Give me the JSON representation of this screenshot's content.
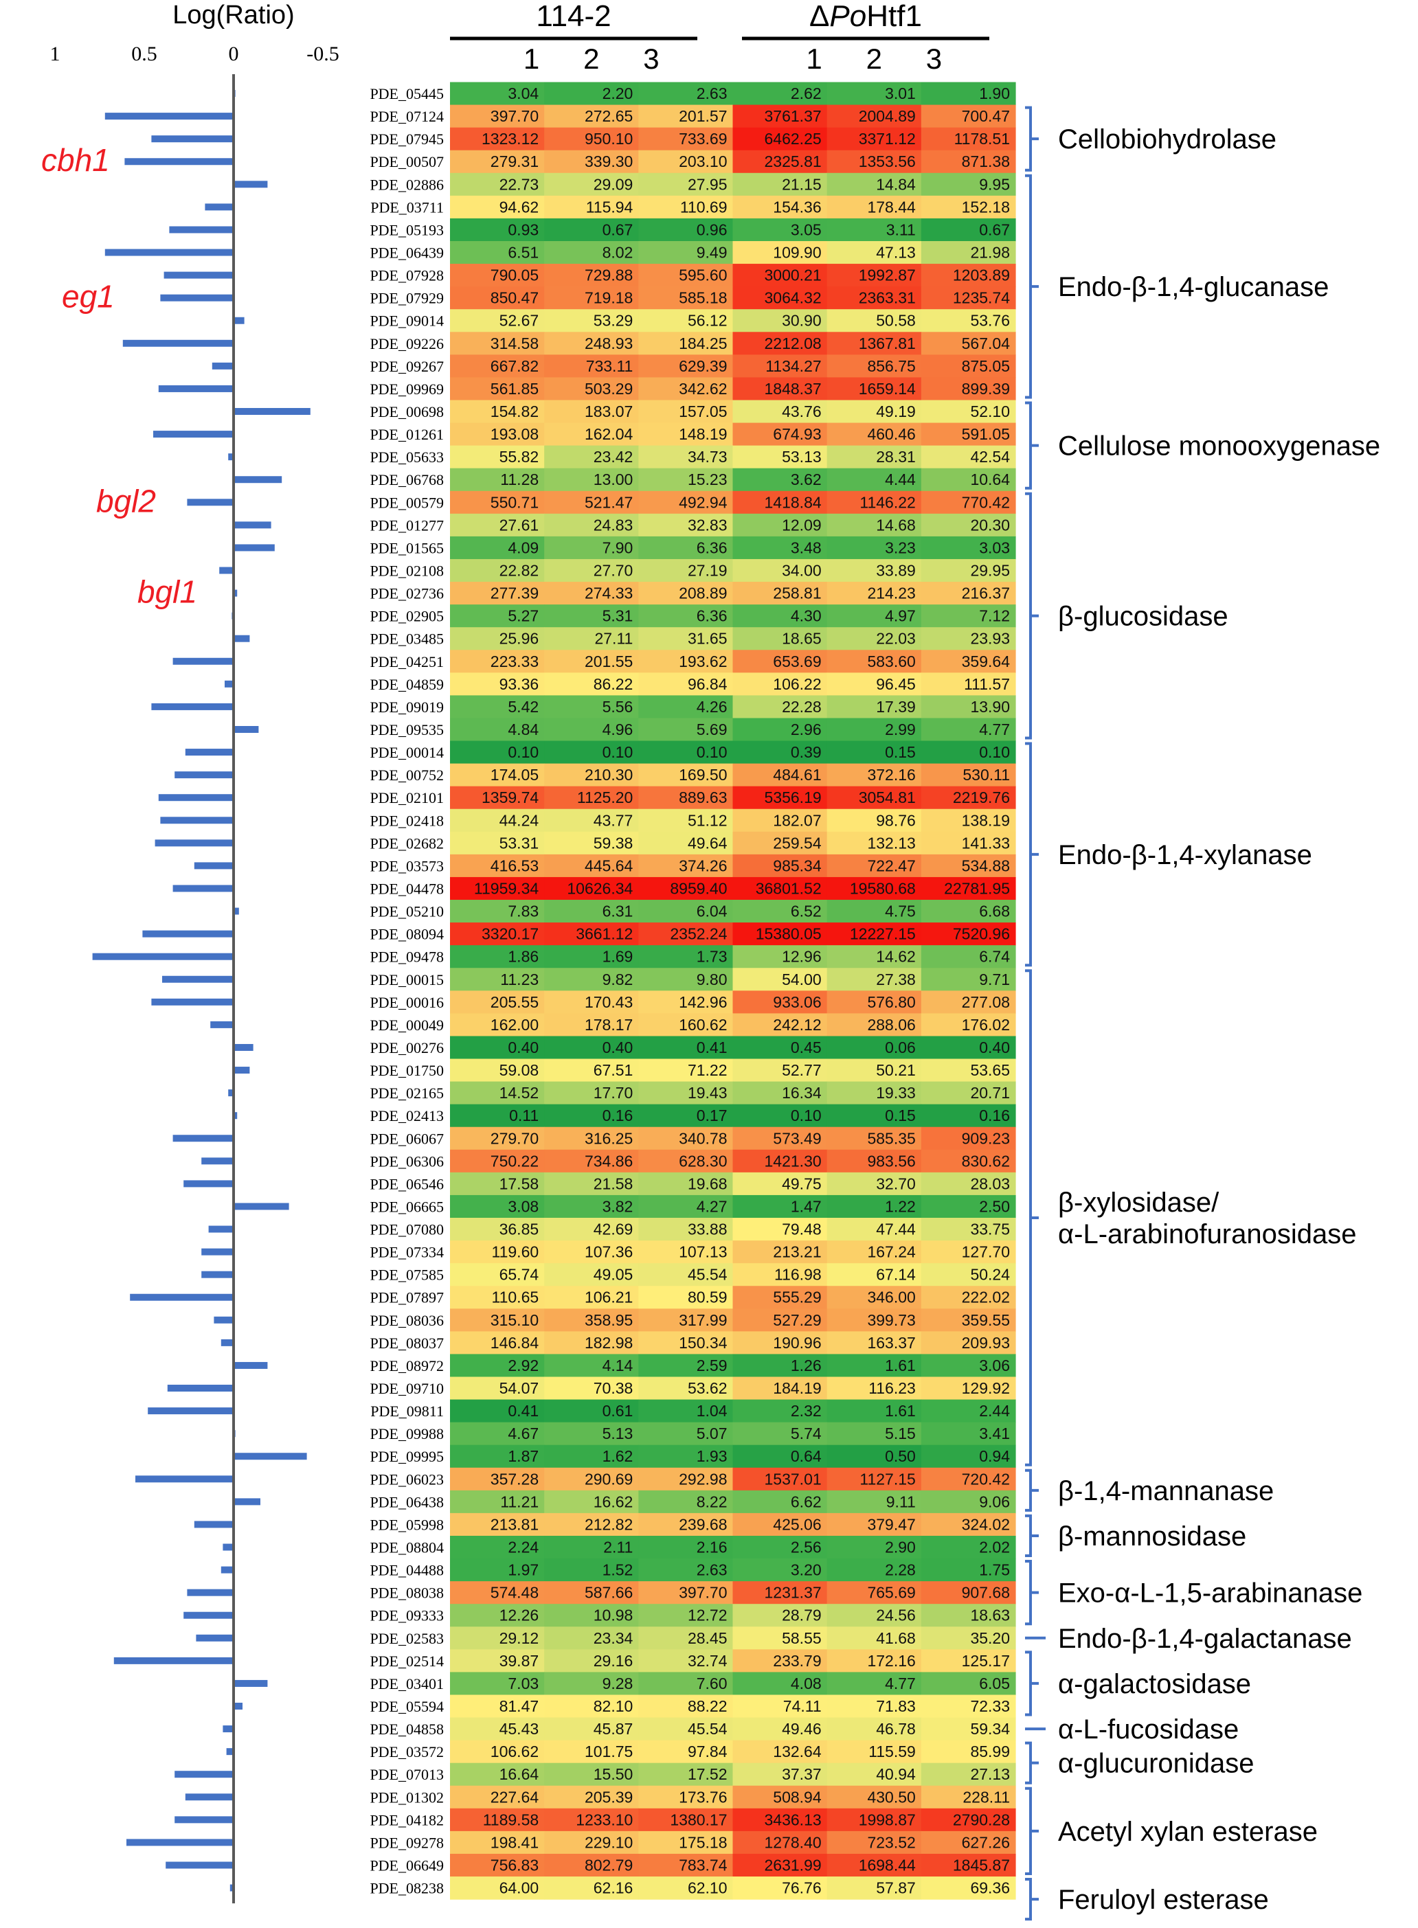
{
  "chart_data": {
    "type": "heatmap",
    "bar_axis": {
      "title": "Log(Ratio)",
      "ticks": [
        "1",
        "0.5",
        "0",
        "-0.5"
      ],
      "tick_values": [
        1,
        0.5,
        0,
        -0.5
      ],
      "range": [
        1.0,
        -0.6
      ]
    },
    "groups": [
      {
        "name": "114-2",
        "replicates": [
          "1",
          "2",
          "3"
        ]
      },
      {
        "name_prefix": "Δ",
        "name_italic": "Po",
        "name_suffix": "Htf1",
        "replicates": [
          "1",
          "2",
          "3"
        ]
      }
    ],
    "colors": {
      "low": "#23a045",
      "mid": "#fff07a",
      "high": "#f5150e",
      "bar": "#4472c4",
      "bracket": "#4472c4",
      "gene_label": "#ee1d24"
    },
    "color_scale": "log",
    "rows": [
      {
        "id": "PDE_05445",
        "v": [
          3.04,
          2.2,
          2.63,
          2.62,
          3.01,
          1.9
        ],
        "r": -0.01
      },
      {
        "id": "PDE_07124",
        "v": [
          397.7,
          272.65,
          201.57,
          3761.37,
          2004.89,
          700.47
        ],
        "r": 0.72
      },
      {
        "id": "PDE_07945",
        "v": [
          1323.12,
          950.1,
          733.69,
          6462.25,
          3371.12,
          1178.51
        ],
        "r": 0.46
      },
      {
        "id": "PDE_00507",
        "v": [
          279.31,
          339.3,
          203.1,
          2325.81,
          1353.56,
          871.38
        ],
        "r": 0.61
      },
      {
        "id": "PDE_02886",
        "v": [
          22.73,
          29.09,
          27.95,
          21.15,
          14.84,
          9.95
        ],
        "r": -0.19
      },
      {
        "id": "PDE_03711",
        "v": [
          94.62,
          115.94,
          110.69,
          154.36,
          178.44,
          152.18
        ],
        "r": 0.16
      },
      {
        "id": "PDE_05193",
        "v": [
          0.93,
          0.67,
          0.96,
          3.05,
          3.11,
          0.67
        ],
        "r": 0.36
      },
      {
        "id": "PDE_06439",
        "v": [
          6.51,
          8.02,
          9.49,
          109.9,
          47.13,
          21.98
        ],
        "r": 0.72
      },
      {
        "id": "PDE_07928",
        "v": [
          790.05,
          729.88,
          595.6,
          3000.21,
          1992.87,
          1203.89
        ],
        "r": 0.39
      },
      {
        "id": "PDE_07929",
        "v": [
          850.47,
          719.18,
          585.18,
          3064.32,
          2363.31,
          1235.74
        ],
        "r": 0.41
      },
      {
        "id": "PDE_09014",
        "v": [
          52.67,
          53.29,
          56.12,
          30.9,
          50.58,
          53.76
        ],
        "r": -0.06
      },
      {
        "id": "PDE_09226",
        "v": [
          314.58,
          248.93,
          184.25,
          2212.08,
          1367.81,
          567.04
        ],
        "r": 0.62
      },
      {
        "id": "PDE_09267",
        "v": [
          667.82,
          733.11,
          629.39,
          1134.27,
          856.75,
          875.05
        ],
        "r": 0.12
      },
      {
        "id": "PDE_09969",
        "v": [
          561.85,
          503.29,
          342.62,
          1848.37,
          1659.14,
          899.39
        ],
        "r": 0.42
      },
      {
        "id": "PDE_00698",
        "v": [
          154.82,
          183.07,
          157.05,
          43.76,
          49.19,
          52.1
        ],
        "r": -0.43
      },
      {
        "id": "PDE_01261",
        "v": [
          193.08,
          162.04,
          148.19,
          674.93,
          460.46,
          591.05
        ],
        "r": 0.45
      },
      {
        "id": "PDE_05633",
        "v": [
          55.82,
          23.42,
          34.73,
          53.13,
          28.31,
          42.54
        ],
        "r": 0.03
      },
      {
        "id": "PDE_06768",
        "v": [
          11.28,
          13.0,
          15.23,
          3.62,
          4.44,
          10.64
        ],
        "r": -0.27
      },
      {
        "id": "PDE_00579",
        "v": [
          550.71,
          521.47,
          492.94,
          1418.84,
          1146.22,
          770.42
        ],
        "r": 0.26
      },
      {
        "id": "PDE_01277",
        "v": [
          27.61,
          24.83,
          32.83,
          12.09,
          14.68,
          20.3
        ],
        "r": -0.21
      },
      {
        "id": "PDE_01565",
        "v": [
          4.09,
          7.9,
          6.36,
          3.48,
          3.23,
          3.03
        ],
        "r": -0.23
      },
      {
        "id": "PDE_02108",
        "v": [
          22.82,
          27.7,
          27.19,
          34.0,
          33.89,
          29.95
        ],
        "r": 0.08
      },
      {
        "id": "PDE_02736",
        "v": [
          277.39,
          274.33,
          208.89,
          258.81,
          214.23,
          216.37
        ],
        "r": -0.02
      },
      {
        "id": "PDE_02905",
        "v": [
          5.27,
          5.31,
          6.36,
          4.3,
          4.97,
          7.12
        ],
        "r": 0.01
      },
      {
        "id": "PDE_03485",
        "v": [
          25.96,
          27.11,
          31.65,
          18.65,
          22.03,
          23.93
        ],
        "r": -0.09
      },
      {
        "id": "PDE_04251",
        "v": [
          223.33,
          201.55,
          193.62,
          653.69,
          583.6,
          359.64
        ],
        "r": 0.34
      },
      {
        "id": "PDE_04859",
        "v": [
          93.36,
          86.22,
          96.84,
          106.22,
          96.45,
          111.57
        ],
        "r": 0.05
      },
      {
        "id": "PDE_09019",
        "v": [
          5.42,
          5.56,
          4.26,
          22.28,
          17.39,
          13.9
        ],
        "r": 0.46
      },
      {
        "id": "PDE_09535",
        "v": [
          4.84,
          4.96,
          5.69,
          2.96,
          2.99,
          4.77
        ],
        "r": -0.14
      },
      {
        "id": "PDE_00014",
        "v": [
          0.1,
          0.1,
          0.1,
          0.39,
          0.15,
          0.1
        ],
        "r": 0.27
      },
      {
        "id": "PDE_00752",
        "v": [
          174.05,
          210.3,
          169.5,
          484.61,
          372.16,
          530.11
        ],
        "r": 0.33
      },
      {
        "id": "PDE_02101",
        "v": [
          1359.74,
          1125.2,
          889.63,
          5356.19,
          3054.81,
          2219.76
        ],
        "r": 0.42
      },
      {
        "id": "PDE_02418",
        "v": [
          44.24,
          43.77,
          51.12,
          182.07,
          98.76,
          138.19
        ],
        "r": 0.41
      },
      {
        "id": "PDE_02682",
        "v": [
          53.31,
          59.38,
          49.64,
          259.54,
          132.13,
          141.33
        ],
        "r": 0.44
      },
      {
        "id": "PDE_03573",
        "v": [
          416.53,
          445.64,
          374.26,
          985.34,
          722.47,
          534.88
        ],
        "r": 0.22
      },
      {
        "id": "PDE_04478",
        "v": [
          11959.34,
          10626.34,
          8959.4,
          36801.52,
          19580.68,
          22781.95
        ],
        "r": 0.34
      },
      {
        "id": "PDE_05210",
        "v": [
          7.83,
          6.31,
          6.04,
          6.52,
          4.75,
          6.68
        ],
        "r": -0.03
      },
      {
        "id": "PDE_08094",
        "v": [
          3320.17,
          3661.12,
          2352.24,
          15380.05,
          12227.15,
          7520.96
        ],
        "r": 0.51
      },
      {
        "id": "PDE_09478",
        "v": [
          1.86,
          1.69,
          1.73,
          12.96,
          14.62,
          6.74
        ],
        "r": 0.79
      },
      {
        "id": "PDE_00015",
        "v": [
          11.23,
          9.82,
          9.8,
          54.0,
          27.38,
          9.71
        ],
        "r": 0.4
      },
      {
        "id": "PDE_00016",
        "v": [
          205.55,
          170.43,
          142.96,
          933.06,
          576.8,
          277.08
        ],
        "r": 0.46
      },
      {
        "id": "PDE_00049",
        "v": [
          162.0,
          178.17,
          160.62,
          242.12,
          288.06,
          176.02
        ],
        "r": 0.13
      },
      {
        "id": "PDE_00276",
        "v": [
          0.4,
          0.4,
          0.41,
          0.45,
          0.06,
          0.4
        ],
        "r": -0.11
      },
      {
        "id": "PDE_01750",
        "v": [
          59.08,
          67.51,
          71.22,
          52.77,
          50.21,
          53.65
        ],
        "r": -0.09
      },
      {
        "id": "PDE_02165",
        "v": [
          14.52,
          17.7,
          19.43,
          16.34,
          19.33,
          20.71
        ],
        "r": 0.03
      },
      {
        "id": "PDE_02413",
        "v": [
          0.11,
          0.16,
          0.17,
          0.1,
          0.15,
          0.16
        ],
        "r": -0.02
      },
      {
        "id": "PDE_06067",
        "v": [
          279.7,
          316.25,
          340.78,
          573.49,
          585.35,
          909.23
        ],
        "r": 0.34
      },
      {
        "id": "PDE_06306",
        "v": [
          750.22,
          734.86,
          628.3,
          1421.3,
          983.56,
          830.62
        ],
        "r": 0.18
      },
      {
        "id": "PDE_06546",
        "v": [
          17.58,
          21.58,
          19.68,
          49.75,
          32.7,
          28.03
        ],
        "r": 0.28
      },
      {
        "id": "PDE_06665",
        "v": [
          3.08,
          3.82,
          4.27,
          1.47,
          1.22,
          2.5
        ],
        "r": -0.31
      },
      {
        "id": "PDE_07080",
        "v": [
          36.85,
          42.69,
          33.88,
          79.48,
          47.44,
          33.75
        ],
        "r": 0.14
      },
      {
        "id": "PDE_07334",
        "v": [
          119.6,
          107.36,
          107.13,
          213.21,
          167.24,
          127.7
        ],
        "r": 0.18
      },
      {
        "id": "PDE_07585",
        "v": [
          65.74,
          49.05,
          45.54,
          116.98,
          67.14,
          50.24
        ],
        "r": 0.18
      },
      {
        "id": "PDE_07897",
        "v": [
          110.65,
          106.21,
          80.59,
          555.29,
          346.0,
          222.02
        ],
        "r": 0.58
      },
      {
        "id": "PDE_08036",
        "v": [
          315.1,
          358.95,
          317.99,
          527.29,
          399.73,
          359.55
        ],
        "r": 0.11
      },
      {
        "id": "PDE_08037",
        "v": [
          146.84,
          182.98,
          150.34,
          190.96,
          163.37,
          209.93
        ],
        "r": 0.07
      },
      {
        "id": "PDE_08972",
        "v": [
          2.92,
          4.14,
          2.59,
          1.26,
          1.61,
          3.06
        ],
        "r": -0.19
      },
      {
        "id": "PDE_09710",
        "v": [
          54.07,
          70.38,
          53.62,
          184.19,
          116.23,
          129.92
        ],
        "r": 0.37
      },
      {
        "id": "PDE_09811",
        "v": [
          0.41,
          0.61,
          1.04,
          2.32,
          1.61,
          2.44
        ],
        "r": 0.48
      },
      {
        "id": "PDE_09988",
        "v": [
          4.67,
          5.13,
          5.07,
          5.74,
          5.15,
          3.41
        ],
        "r": -0.01
      },
      {
        "id": "PDE_09995",
        "v": [
          1.87,
          1.62,
          1.93,
          0.64,
          0.5,
          0.94
        ],
        "r": -0.41
      },
      {
        "id": "PDE_06023",
        "v": [
          357.28,
          290.69,
          292.98,
          1537.01,
          1127.15,
          720.42
        ],
        "r": 0.55
      },
      {
        "id": "PDE_06438",
        "v": [
          11.21,
          16.62,
          8.22,
          6.62,
          9.11,
          9.06
        ],
        "r": -0.15
      },
      {
        "id": "PDE_05998",
        "v": [
          213.81,
          212.82,
          239.68,
          425.06,
          379.47,
          324.02
        ],
        "r": 0.22
      },
      {
        "id": "PDE_08804",
        "v": [
          2.24,
          2.11,
          2.16,
          2.56,
          2.9,
          2.02
        ],
        "r": 0.06
      },
      {
        "id": "PDE_04488",
        "v": [
          1.97,
          1.52,
          2.63,
          3.2,
          2.28,
          1.75
        ],
        "r": 0.07
      },
      {
        "id": "PDE_08038",
        "v": [
          574.48,
          587.66,
          397.7,
          1231.37,
          765.69,
          907.68
        ],
        "r": 0.26
      },
      {
        "id": "PDE_09333",
        "v": [
          12.26,
          10.98,
          12.72,
          28.79,
          24.56,
          18.63
        ],
        "r": 0.28
      },
      {
        "id": "PDE_02583",
        "v": [
          29.12,
          23.34,
          28.45,
          58.55,
          41.68,
          35.2
        ],
        "r": 0.21
      },
      {
        "id": "PDE_02514",
        "v": [
          39.87,
          29.16,
          32.74,
          233.79,
          172.16,
          125.17
        ],
        "r": 0.67
      },
      {
        "id": "PDE_03401",
        "v": [
          7.03,
          9.28,
          7.6,
          4.08,
          4.77,
          6.05
        ],
        "r": -0.19
      },
      {
        "id": "PDE_05594",
        "v": [
          81.47,
          82.1,
          88.22,
          74.11,
          71.83,
          72.33
        ],
        "r": -0.05
      },
      {
        "id": "PDE_04858",
        "v": [
          45.43,
          45.87,
          45.54,
          49.46,
          46.78,
          59.34
        ],
        "r": 0.06
      },
      {
        "id": "PDE_03572",
        "v": [
          106.62,
          101.75,
          97.84,
          132.64,
          115.59,
          85.99
        ],
        "r": 0.04
      },
      {
        "id": "PDE_07013",
        "v": [
          16.64,
          15.5,
          17.52,
          37.37,
          40.94,
          27.13
        ],
        "r": 0.33
      },
      {
        "id": "PDE_01302",
        "v": [
          227.64,
          205.39,
          173.76,
          508.94,
          430.5,
          228.11
        ],
        "r": 0.27
      },
      {
        "id": "PDE_04182",
        "v": [
          1189.58,
          1233.1,
          1380.17,
          3436.13,
          1998.87,
          2790.28
        ],
        "r": 0.33
      },
      {
        "id": "PDE_09278",
        "v": [
          198.41,
          229.1,
          175.18,
          1278.4,
          723.52,
          627.26
        ],
        "r": 0.6
      },
      {
        "id": "PDE_06649",
        "v": [
          756.83,
          802.79,
          783.74,
          2631.99,
          1698.44,
          1845.87
        ],
        "r": 0.38
      },
      {
        "id": "PDE_08238",
        "v": [
          64.0,
          62.16,
          62.1,
          76.76,
          57.87,
          69.36
        ],
        "r": 0.02
      }
    ],
    "categories": [
      {
        "label": [
          "Cellobiohydrolase"
        ],
        "start": 1,
        "end": 3
      },
      {
        "label": [
          "Endo-β-1,4-glucanase"
        ],
        "start": 4,
        "end": 13
      },
      {
        "label": [
          "Cellulose monooxygenase"
        ],
        "start": 14,
        "end": 17
      },
      {
        "label": [
          "β-glucosidase"
        ],
        "start": 18,
        "end": 28
      },
      {
        "label": [
          "Endo-β-1,4-xylanase"
        ],
        "start": 29,
        "end": 38
      },
      {
        "label": [
          "β-xylosidase/",
          "α-L-arabinofuranosidase"
        ],
        "start": 39,
        "end": 60
      },
      {
        "label": [
          "β-1,4-mannanase"
        ],
        "start": 61,
        "end": 62
      },
      {
        "label": [
          "β-mannosidase"
        ],
        "start": 63,
        "end": 64
      },
      {
        "label": [
          "Exo-α-L-1,5-arabinanase"
        ],
        "start": 65,
        "end": 67
      },
      {
        "label": [
          "Endo-β-1,4-galactanase"
        ],
        "start": 68,
        "end": 68
      },
      {
        "label": [
          "α-galactosidase"
        ],
        "start": 69,
        "end": 71
      },
      {
        "label": [
          "α-L-fucosidase"
        ],
        "start": 72,
        "end": 72
      },
      {
        "label": [
          "α-glucuronidase"
        ],
        "start": 73,
        "end": 74
      },
      {
        "label": [
          "Acetyl xylan esterase"
        ],
        "start": 75,
        "end": 78
      },
      {
        "label": [
          "Feruloyl esterase"
        ],
        "start": 79,
        "end": 80
      }
    ],
    "gene_labels": [
      {
        "text": "cbh1",
        "row": 3
      },
      {
        "text": "eg1",
        "row": 9
      },
      {
        "text": "bgl2",
        "row": 18
      },
      {
        "text": "bgl1",
        "row": 22
      }
    ]
  }
}
